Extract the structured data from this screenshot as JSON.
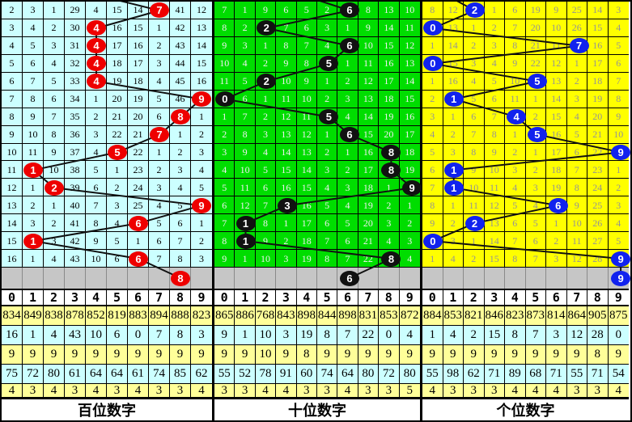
{
  "title": "lottery-digit-trend-chart",
  "column_headers": [
    "0",
    "1",
    "2",
    "3",
    "4",
    "5",
    "6",
    "7",
    "8",
    "9"
  ],
  "line_color": "#111111",
  "gray_row_color": "#c6c6c6",
  "stat_row_colors": [
    "#ffff99",
    "#ccffff",
    "#ffff99",
    "#ccffff",
    "#ffff99"
  ],
  "panels": [
    {
      "name": "hundreds",
      "footer_label": "百位数字",
      "bg": "#ccffff",
      "cell_text_color": "#000000",
      "ball_color": "#ee0000",
      "incoming_x_ratio": 0.455,
      "rows": [
        [
          "2",
          "3",
          "1",
          "29",
          "4",
          "15",
          "14",
          "7",
          "41",
          "12"
        ],
        [
          "3",
          "4",
          "2",
          "30",
          "4",
          "16",
          "15",
          "1",
          "42",
          "13"
        ],
        [
          "4",
          "5",
          "3",
          "31",
          "4",
          "17",
          "16",
          "2",
          "43",
          "14"
        ],
        [
          "5",
          "6",
          "4",
          "32",
          "4",
          "18",
          "17",
          "3",
          "44",
          "15"
        ],
        [
          "6",
          "7",
          "5",
          "33",
          "4",
          "19",
          "18",
          "4",
          "45",
          "16"
        ],
        [
          "7",
          "8",
          "6",
          "34",
          "1",
          "20",
          "19",
          "5",
          "46",
          "9"
        ],
        [
          "8",
          "9",
          "7",
          "35",
          "2",
          "21",
          "20",
          "6",
          "8",
          "1"
        ],
        [
          "9",
          "10",
          "8",
          "36",
          "3",
          "22",
          "21",
          "7",
          "1",
          "2"
        ],
        [
          "10",
          "11",
          "9",
          "37",
          "4",
          "5",
          "22",
          "1",
          "2",
          "3"
        ],
        [
          "11",
          "1",
          "10",
          "38",
          "5",
          "1",
          "23",
          "2",
          "3",
          "4"
        ],
        [
          "12",
          "1",
          "2",
          "39",
          "6",
          "2",
          "24",
          "3",
          "4",
          "5"
        ],
        [
          "13",
          "2",
          "1",
          "40",
          "7",
          "3",
          "25",
          "4",
          "5",
          "9"
        ],
        [
          "14",
          "3",
          "2",
          "41",
          "8",
          "4",
          "6",
          "5",
          "6",
          "1"
        ],
        [
          "15",
          "1",
          "3",
          "42",
          "9",
          "5",
          "1",
          "6",
          "7",
          "2"
        ],
        [
          "16",
          "1",
          "4",
          "43",
          "10",
          "6",
          "6",
          "7",
          "8",
          "3"
        ]
      ],
      "ball_cols": [
        7,
        4,
        4,
        4,
        4,
        9,
        8,
        7,
        5,
        1,
        2,
        9,
        6,
        1,
        6
      ],
      "pending_ball": {
        "col": 8,
        "label": "8"
      },
      "stats": [
        [
          "834",
          "849",
          "838",
          "878",
          "852",
          "819",
          "883",
          "894",
          "888",
          "823"
        ],
        [
          "16",
          "1",
          "4",
          "43",
          "10",
          "6",
          "0",
          "7",
          "8",
          "3"
        ],
        [
          "9",
          "9",
          "9",
          "9",
          "9",
          "9",
          "9",
          "9",
          "9",
          "9"
        ],
        [
          "75",
          "72",
          "80",
          "61",
          "64",
          "64",
          "61",
          "74",
          "85",
          "62"
        ],
        [
          "4",
          "3",
          "4",
          "3",
          "4",
          "3",
          "4",
          "3",
          "3",
          "4"
        ]
      ]
    },
    {
      "name": "tens",
      "footer_label": "十位数字",
      "bg": "#00dd00",
      "cell_text_color": "#f0f0f0",
      "ball_color": "#111111",
      "incoming_x_ratio": 0.423,
      "rows": [
        [
          "7",
          "1",
          "9",
          "6",
          "5",
          "2",
          "6",
          "8",
          "13",
          "10"
        ],
        [
          "8",
          "2",
          "2",
          "7",
          "6",
          "3",
          "1",
          "9",
          "14",
          "11"
        ],
        [
          "9",
          "3",
          "1",
          "8",
          "7",
          "4",
          "6",
          "10",
          "15",
          "12"
        ],
        [
          "10",
          "4",
          "2",
          "9",
          "8",
          "5",
          "1",
          "11",
          "16",
          "13"
        ],
        [
          "11",
          "5",
          "2",
          "10",
          "9",
          "1",
          "2",
          "12",
          "17",
          "14"
        ],
        [
          "0",
          "6",
          "1",
          "11",
          "10",
          "2",
          "3",
          "13",
          "18",
          "15"
        ],
        [
          "1",
          "7",
          "2",
          "12",
          "11",
          "5",
          "4",
          "14",
          "19",
          "16"
        ],
        [
          "2",
          "8",
          "3",
          "13",
          "12",
          "1",
          "6",
          "15",
          "20",
          "17"
        ],
        [
          "3",
          "9",
          "4",
          "14",
          "13",
          "2",
          "1",
          "16",
          "8",
          "18"
        ],
        [
          "4",
          "10",
          "5",
          "15",
          "14",
          "3",
          "2",
          "17",
          "8",
          "19"
        ],
        [
          "5",
          "11",
          "6",
          "16",
          "15",
          "4",
          "3",
          "18",
          "1",
          "9"
        ],
        [
          "6",
          "12",
          "7",
          "3",
          "16",
          "5",
          "4",
          "19",
          "2",
          "1"
        ],
        [
          "7",
          "1",
          "8",
          "1",
          "17",
          "6",
          "5",
          "20",
          "3",
          "2"
        ],
        [
          "8",
          "1",
          "9",
          "2",
          "18",
          "7",
          "6",
          "21",
          "4",
          "3"
        ],
        [
          "9",
          "1",
          "10",
          "3",
          "19",
          "8",
          "7",
          "22",
          "8",
          "4"
        ]
      ],
      "ball_cols": [
        6,
        2,
        6,
        5,
        2,
        0,
        5,
        6,
        8,
        8,
        9,
        3,
        1,
        1,
        8
      ],
      "pending_ball": {
        "col": 6,
        "label": "6"
      },
      "stats": [
        [
          "865",
          "886",
          "768",
          "843",
          "898",
          "844",
          "898",
          "831",
          "853",
          "872"
        ],
        [
          "9",
          "1",
          "10",
          "3",
          "19",
          "8",
          "7",
          "22",
          "0",
          "4"
        ],
        [
          "9",
          "9",
          "10",
          "9",
          "8",
          "9",
          "9",
          "9",
          "9",
          "9"
        ],
        [
          "55",
          "52",
          "78",
          "91",
          "60",
          "74",
          "64",
          "80",
          "72",
          "80"
        ],
        [
          "3",
          "3",
          "4",
          "4",
          "3",
          "3",
          "4",
          "3",
          "3",
          "5"
        ]
      ]
    },
    {
      "name": "units",
      "footer_label": "个位数字",
      "bg": "#ffff00",
      "cell_text_color": "#949494",
      "ball_color": "#1122ee",
      "incoming_x_ratio": 0.115,
      "rows": [
        [
          "8",
          "12",
          "2",
          "1",
          "6",
          "19",
          "9",
          "25",
          "14",
          "3"
        ],
        [
          "0",
          "13",
          "1",
          "2",
          "7",
          "20",
          "10",
          "26",
          "15",
          "4"
        ],
        [
          "1",
          "14",
          "2",
          "3",
          "8",
          "21",
          "11",
          "7",
          "16",
          "5"
        ],
        [
          "0",
          "15",
          "3",
          "4",
          "9",
          "22",
          "12",
          "1",
          "17",
          "6"
        ],
        [
          "1",
          "16",
          "4",
          "5",
          "10",
          "5",
          "13",
          "2",
          "18",
          "7"
        ],
        [
          "2",
          "1",
          "5",
          "6",
          "11",
          "1",
          "14",
          "3",
          "19",
          "8"
        ],
        [
          "3",
          "1",
          "6",
          "7",
          "4",
          "2",
          "15",
          "4",
          "20",
          "9"
        ],
        [
          "4",
          "2",
          "7",
          "8",
          "1",
          "5",
          "16",
          "5",
          "21",
          "10"
        ],
        [
          "5",
          "3",
          "8",
          "9",
          "2",
          "1",
          "17",
          "6",
          "22",
          "9"
        ],
        [
          "6",
          "1",
          "9",
          "10",
          "3",
          "2",
          "18",
          "7",
          "23",
          "1"
        ],
        [
          "7",
          "1",
          "10",
          "11",
          "4",
          "3",
          "19",
          "8",
          "24",
          "2"
        ],
        [
          "8",
          "1",
          "11",
          "12",
          "5",
          "4",
          "6",
          "9",
          "25",
          "3"
        ],
        [
          "9",
          "2",
          "2",
          "13",
          "6",
          "5",
          "1",
          "10",
          "26",
          "4"
        ],
        [
          "0",
          "3",
          "1",
          "14",
          "7",
          "6",
          "2",
          "11",
          "27",
          "5"
        ],
        [
          "1",
          "4",
          "2",
          "15",
          "8",
          "7",
          "3",
          "12",
          "28",
          "9"
        ]
      ],
      "ball_cols": [
        2,
        0,
        7,
        0,
        5,
        1,
        4,
        5,
        9,
        1,
        1,
        6,
        2,
        0,
        9
      ],
      "pending_ball": {
        "col": 9,
        "label": "9"
      },
      "stats": [
        [
          "884",
          "853",
          "821",
          "846",
          "823",
          "873",
          "814",
          "864",
          "905",
          "875"
        ],
        [
          "1",
          "4",
          "2",
          "15",
          "8",
          "7",
          "3",
          "12",
          "28",
          "0"
        ],
        [
          "9",
          "9",
          "9",
          "9",
          "9",
          "9",
          "9",
          "9",
          "8",
          "9"
        ],
        [
          "55",
          "98",
          "62",
          "71",
          "89",
          "68",
          "71",
          "55",
          "71",
          "54"
        ],
        [
          "4",
          "3",
          "3",
          "3",
          "4",
          "4",
          "4",
          "3",
          "3",
          "4"
        ]
      ]
    }
  ]
}
